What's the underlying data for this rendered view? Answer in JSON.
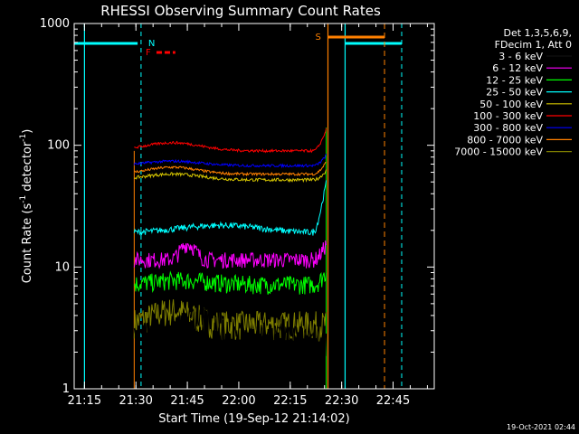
{
  "chart_data": {
    "type": "line",
    "title": "RHESSI Observing Summary Count Rates",
    "xlabel": "Start Time (19-Sep-12 21:14:02)",
    "ylabel_main": "Count Rate (s",
    "ylabel_sup1": "-1",
    "ylabel_mid": " detector",
    "ylabel_sup2": "-1",
    "ylabel_end": ")",
    "yscale": "log",
    "ylim": [
      1,
      1000
    ],
    "xlim_minutes": [
      21.2,
      22.95
    ],
    "x_ticks": [
      "21:15",
      "21:30",
      "21:45",
      "22:00",
      "22:15",
      "22:30",
      "22:45"
    ],
    "y_ticks": [
      "1",
      "10",
      "100",
      "1000"
    ],
    "legend_header": [
      "Det 1,3,5,6,9,",
      "FDecim 1, Att 0"
    ],
    "timestamp": "19-Oct-2021 02:44",
    "flags": [
      {
        "label": "N",
        "color": "#00ffff"
      },
      {
        "label": "F",
        "color": "#ff0000"
      },
      {
        "label": "S",
        "color": "#ff8000"
      }
    ],
    "series": [
      {
        "name": "3 - 6 keV",
        "color": "#000000",
        "level": 3.0
      },
      {
        "name": "6 - 12 keV",
        "color": "#ff00ff",
        "level": 12
      },
      {
        "name": "12 - 25 keV",
        "color": "#00ff00",
        "level": 7
      },
      {
        "name": "25 - 50 keV",
        "color": "#00ffff",
        "level": 20
      },
      {
        "name": "50 - 100 keV",
        "color": "#d4c400",
        "level": 55
      },
      {
        "name": "100 - 300 keV",
        "color": "#ff0000",
        "level": 95
      },
      {
        "name": "300 - 800 keV",
        "color": "#0000ff",
        "level": 72
      },
      {
        "name": "800 - 7000 keV",
        "color": "#ff8000",
        "level": 62
      },
      {
        "name": "7000 - 15000 keV",
        "color": "#808000",
        "level": 3.5
      }
    ]
  }
}
